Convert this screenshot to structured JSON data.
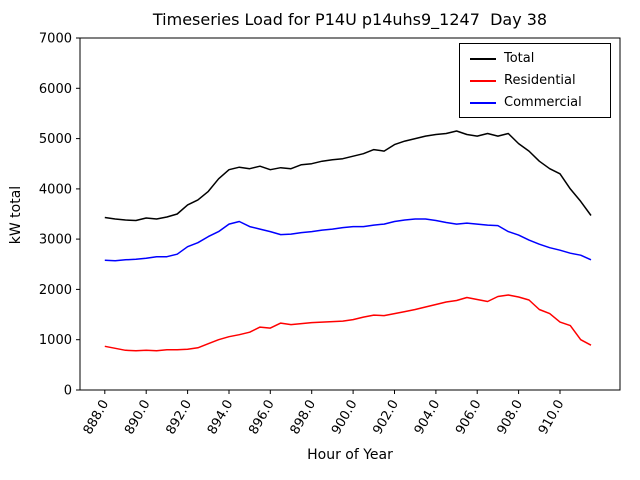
{
  "title": "Timeseries Load for P14U p14uhs9_1247  Day 38",
  "xlabel": "Hour of Year",
  "ylabel": "kW total",
  "legend": {
    "items": [
      {
        "label": "Total",
        "color": "#000000"
      },
      {
        "label": "Residential",
        "color": "#ff0000"
      },
      {
        "label": "Commercial",
        "color": "#0000ff"
      }
    ]
  },
  "chart_data": {
    "type": "line",
    "title": "Timeseries Load for P14U p14uhs9_1247  Day 38",
    "xlabel": "Hour of Year",
    "ylabel": "kW total",
    "legend_position": "upper right",
    "grid": false,
    "xlim": [
      886.8,
      912.9
    ],
    "ylim": [
      0,
      7000
    ],
    "ytick_values": [
      0,
      1000,
      2000,
      3000,
      4000,
      5000,
      6000,
      7000
    ],
    "ytick_labels": [
      "0",
      "1000",
      "2000",
      "3000",
      "4000",
      "5000",
      "6000",
      "7000"
    ],
    "xtick_values": [
      888,
      890,
      892,
      894,
      896,
      898,
      900,
      902,
      904,
      906,
      908,
      910
    ],
    "xtick_labels": [
      "888.0",
      "890.0",
      "892.0",
      "894.0",
      "896.0",
      "898.0",
      "900.0",
      "902.0",
      "904.0",
      "906.0",
      "908.0",
      "910.0"
    ],
    "x": [
      888.0,
      888.5,
      889.0,
      889.5,
      890.0,
      890.5,
      891.0,
      891.5,
      892.0,
      892.5,
      893.0,
      893.5,
      894.0,
      894.5,
      895.0,
      895.5,
      896.0,
      896.5,
      897.0,
      897.5,
      898.0,
      898.5,
      899.0,
      899.5,
      900.0,
      900.5,
      901.0,
      901.5,
      902.0,
      902.5,
      903.0,
      903.5,
      904.0,
      904.5,
      905.0,
      905.5,
      906.0,
      906.5,
      907.0,
      907.5,
      908.0,
      908.5,
      909.0,
      909.5,
      910.0,
      910.5,
      911.0,
      911.5
    ],
    "series": [
      {
        "name": "Total",
        "color": "#000000",
        "values": [
          3430,
          3400,
          3380,
          3370,
          3420,
          3400,
          3440,
          3500,
          3680,
          3780,
          3950,
          4200,
          4380,
          4430,
          4400,
          4450,
          4380,
          4420,
          4400,
          4480,
          4500,
          4550,
          4580,
          4600,
          4650,
          4700,
          4780,
          4750,
          4880,
          4950,
          5000,
          5050,
          5080,
          5100,
          5150,
          5080,
          5050,
          5100,
          5050,
          5100,
          4900,
          4750,
          4550,
          4400,
          4300,
          4000,
          3750,
          3470
        ]
      },
      {
        "name": "Residential",
        "color": "#ff0000",
        "values": [
          870,
          830,
          790,
          780,
          790,
          780,
          800,
          800,
          810,
          840,
          920,
          1000,
          1060,
          1100,
          1150,
          1250,
          1230,
          1330,
          1300,
          1320,
          1340,
          1350,
          1360,
          1370,
          1400,
          1450,
          1490,
          1480,
          1520,
          1560,
          1600,
          1650,
          1700,
          1750,
          1780,
          1840,
          1800,
          1760,
          1860,
          1890,
          1850,
          1790,
          1600,
          1520,
          1350,
          1280,
          1000,
          890
        ]
      },
      {
        "name": "Commercial",
        "color": "#0000ff",
        "values": [
          2580,
          2570,
          2590,
          2600,
          2620,
          2650,
          2650,
          2700,
          2850,
          2930,
          3050,
          3150,
          3300,
          3350,
          3250,
          3200,
          3150,
          3090,
          3100,
          3130,
          3150,
          3180,
          3200,
          3230,
          3250,
          3250,
          3280,
          3300,
          3350,
          3380,
          3400,
          3400,
          3370,
          3330,
          3300,
          3320,
          3300,
          3280,
          3270,
          3150,
          3080,
          2980,
          2900,
          2830,
          2780,
          2720,
          2680,
          2590
        ]
      }
    ]
  }
}
